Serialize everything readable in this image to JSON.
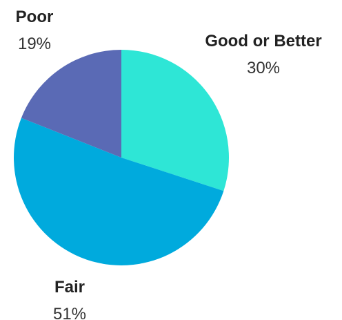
{
  "chart_data": {
    "type": "pie",
    "slices": [
      {
        "label": "Good or Better",
        "value": 30,
        "value_label": "30%",
        "color": "#2ee6d6"
      },
      {
        "label": "Fair",
        "value": 51,
        "value_label": "51%",
        "color": "#00aadd"
      },
      {
        "label": "Poor",
        "value": 19,
        "value_label": "19%",
        "color": "#5a6ab5"
      }
    ],
    "start": "12 o'clock",
    "direction": "clockwise",
    "legend": "none"
  }
}
